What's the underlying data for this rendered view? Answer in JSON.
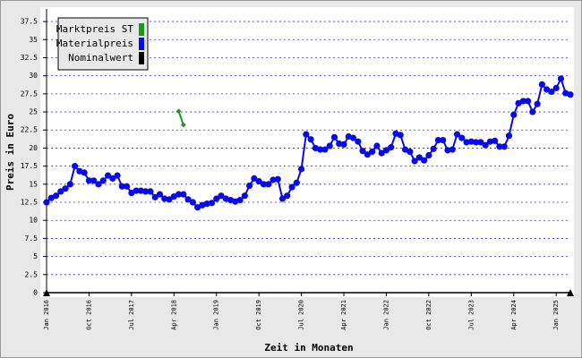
{
  "chart_data": {
    "type": "line",
    "xlabel": "Zeit in Monaten",
    "ylabel": "Preis in Euro",
    "categories": [
      "Jan 2016",
      null,
      null,
      null,
      null,
      null,
      null,
      null,
      null,
      "Oct 2016",
      null,
      null,
      null,
      null,
      null,
      null,
      null,
      null,
      "Jul 2017",
      null,
      null,
      null,
      null,
      null,
      null,
      null,
      null,
      "Apr 2018",
      null,
      null,
      null,
      null,
      null,
      null,
      null,
      null,
      "Jan 2019",
      null,
      null,
      null,
      null,
      null,
      null,
      null,
      null,
      "Oct 2019",
      null,
      null,
      null,
      null,
      null,
      null,
      null,
      null,
      "Jul 2020",
      null,
      null,
      null,
      null,
      null,
      null,
      null,
      null,
      "Apr 2021",
      null,
      null,
      null,
      null,
      null,
      null,
      null,
      null,
      "Jan 2022",
      null,
      null,
      null,
      null,
      null,
      null,
      null,
      null,
      "Oct 2022",
      null,
      null,
      null,
      null,
      null,
      null,
      null,
      null,
      "Jul 2023",
      null,
      null,
      null,
      null,
      null,
      null,
      null,
      null,
      "Apr 2024",
      null,
      null,
      null,
      null,
      null,
      null,
      null,
      null,
      "Jan 2025",
      null,
      null,
      null
    ],
    "series": [
      {
        "name": "Marktpreis ST",
        "color": "#1a9a1a",
        "values": [
          null,
          null,
          null,
          null,
          null,
          null,
          null,
          null,
          null,
          null,
          null,
          null,
          null,
          null,
          null,
          null,
          null,
          null,
          null,
          null,
          null,
          null,
          null,
          null,
          null,
          null,
          null,
          null,
          25.1,
          23.2,
          null,
          null,
          null,
          null,
          null,
          null,
          null,
          null,
          null,
          null,
          null,
          null,
          null,
          null,
          null,
          null,
          null,
          null,
          null,
          null,
          null,
          null,
          null,
          null,
          null,
          null,
          null,
          null,
          null,
          null,
          null,
          null,
          null,
          null,
          null,
          null,
          null,
          null,
          null,
          null,
          null,
          null,
          null,
          null,
          null,
          null,
          null,
          null,
          null,
          null,
          null,
          null,
          null,
          null,
          null,
          null,
          null,
          null,
          null,
          null,
          null,
          null,
          null,
          null,
          null,
          null,
          null,
          null,
          null,
          null,
          null,
          null,
          null,
          null,
          null,
          null,
          null,
          null,
          null,
          null,
          null,
          null
        ]
      },
      {
        "name": "Materialpreis",
        "color": "#0a0ae6",
        "values": [
          12.5,
          13.1,
          13.4,
          14.0,
          14.4,
          15.0,
          17.5,
          16.8,
          16.6,
          15.5,
          15.5,
          15.0,
          15.5,
          16.2,
          15.8,
          16.2,
          14.7,
          14.7,
          13.8,
          14.1,
          14.1,
          14.0,
          14.0,
          13.2,
          13.6,
          13.0,
          12.9,
          13.3,
          13.6,
          13.6,
          12.9,
          12.5,
          11.8,
          12.1,
          12.3,
          12.4,
          13.0,
          13.4,
          13.0,
          12.8,
          12.6,
          12.8,
          13.4,
          14.8,
          15.8,
          15.4,
          15.0,
          15.0,
          15.6,
          15.7,
          13.0,
          13.4,
          14.6,
          15.2,
          17.1,
          21.9,
          21.2,
          20.0,
          19.8,
          19.8,
          20.3,
          21.5,
          20.6,
          20.5,
          21.6,
          21.4,
          20.9,
          19.6,
          19.1,
          19.5,
          20.3,
          19.3,
          19.7,
          20.1,
          22.0,
          21.8,
          19.8,
          19.5,
          18.2,
          18.7,
          18.3,
          19.0,
          19.9,
          21.1,
          21.1,
          19.7,
          19.8,
          21.9,
          21.4,
          20.8,
          20.9,
          20.8,
          20.8,
          20.4,
          20.9,
          21.0,
          20.2,
          20.2,
          21.7,
          24.6,
          26.2,
          26.5,
          26.5,
          25.0,
          26.1,
          28.8,
          28.1,
          27.8,
          28.3,
          29.6,
          27.6,
          27.4
        ]
      },
      {
        "name": "Nominalwert",
        "color": "#000000",
        "values": [
          0,
          0,
          0,
          0,
          0,
          0,
          0,
          0,
          0,
          0,
          0,
          0,
          0,
          0,
          0,
          0,
          0,
          0,
          0,
          0,
          0,
          0,
          0,
          0,
          0,
          0,
          0,
          0,
          0,
          0,
          0,
          0,
          0,
          0,
          0,
          0,
          0,
          0,
          0,
          0,
          0,
          0,
          0,
          0,
          0,
          0,
          0,
          0,
          0,
          0,
          0,
          0,
          0,
          0,
          0,
          0,
          0,
          0,
          0,
          0,
          0,
          0,
          0,
          0,
          0,
          0,
          0,
          0,
          0,
          0,
          0,
          0,
          0,
          0,
          0,
          0,
          0,
          0,
          0,
          0,
          0,
          0,
          0,
          0,
          0,
          0,
          0,
          0,
          0,
          0,
          0,
          0,
          0,
          0,
          0,
          0,
          0,
          0,
          0,
          0,
          0,
          0,
          0,
          0,
          0,
          0,
          0,
          0,
          0,
          0,
          0,
          0
        ]
      }
    ],
    "ylim": [
      0,
      38.5
    ],
    "yticks": [
      0,
      2.5,
      5,
      7.5,
      10,
      12.5,
      15,
      17.5,
      20,
      22.5,
      25,
      27.5,
      30,
      32.5,
      35,
      37.5
    ],
    "grid": true,
    "legend": "upper left"
  }
}
